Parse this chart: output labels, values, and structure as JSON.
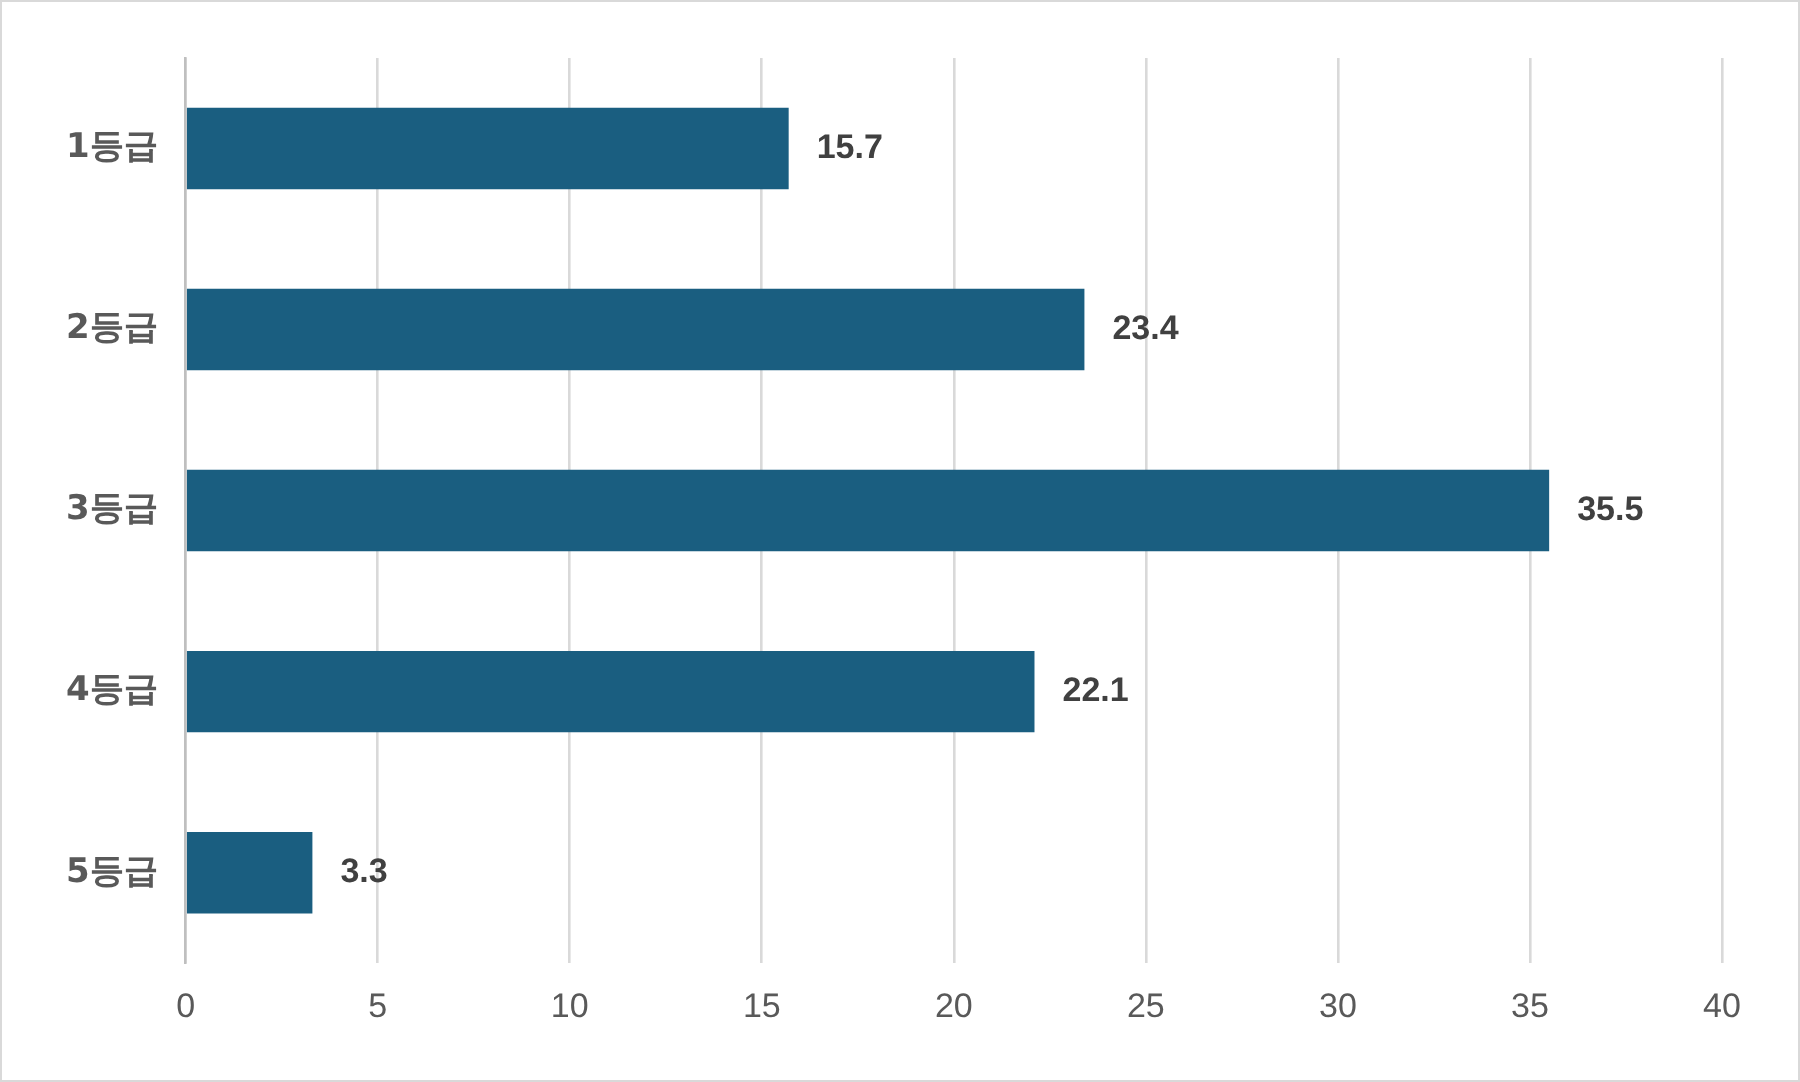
{
  "chart_data": {
    "type": "bar",
    "orientation": "horizontal",
    "categories": [
      "1등급",
      "2등급",
      "3등급",
      "4등급",
      "5등급"
    ],
    "values": [
      15.7,
      23.4,
      35.5,
      22.1,
      3.3
    ],
    "color": "#1a5e80",
    "xlim": [
      0,
      40
    ],
    "xticks": [
      0,
      5,
      10,
      15,
      20,
      25,
      30,
      35,
      40
    ],
    "grid": "x",
    "data_labels": true
  }
}
